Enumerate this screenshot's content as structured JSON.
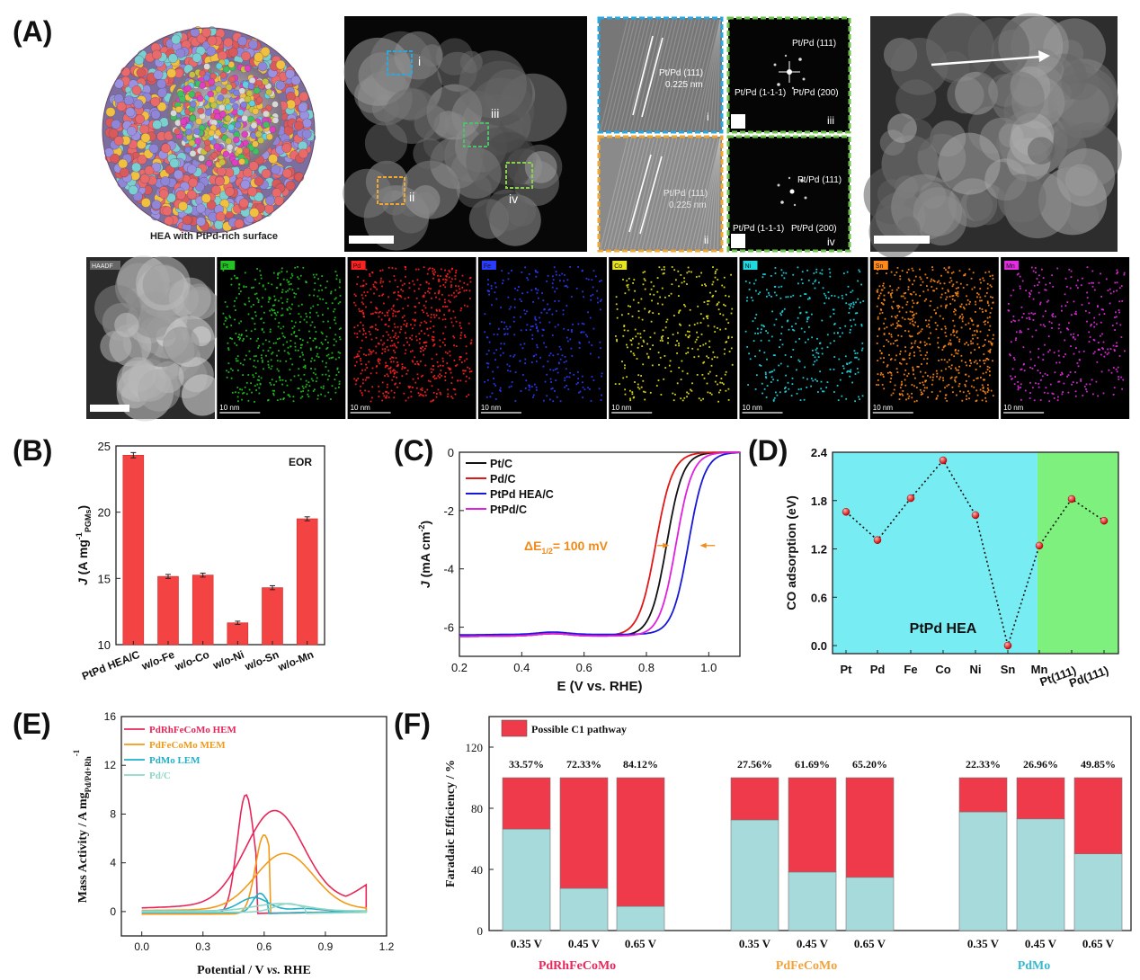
{
  "panel_labels": [
    "(A)",
    "(B)",
    "(C)",
    "(D)",
    "(E)",
    "(F)"
  ],
  "panelA": {
    "sphere_caption": "HEA with PtPd-rich surface",
    "roi_labels": [
      "i",
      "ii",
      "iii",
      "iv"
    ],
    "hrtem": [
      {
        "roman": "i",
        "plane": "Pt/Pd (111)",
        "d": "0.225 nm",
        "frame": "#29a8e0"
      },
      {
        "roman": "ii",
        "plane": "Pt/Pd (111)",
        "d": "0.225 nm",
        "frame": "#f0a830"
      }
    ],
    "fft": [
      {
        "roman": "iii",
        "spots": [
          "Pt/Pd (111)",
          "Pt/Pd (1-1-1)",
          "Pt/Pd (200)"
        ],
        "frame": "#6cc24a"
      },
      {
        "roman": "iv",
        "spots": [
          "Pt/Pd (111)",
          "Pt/Pd (1-1-1)",
          "Pt/Pd (200)"
        ],
        "frame": "#6cc24a"
      }
    ],
    "maps": [
      {
        "tag": "HAADF",
        "color": "#c8c8c8",
        "bg": "#2a2a2a",
        "scale": ""
      },
      {
        "tag": "Pt",
        "color": "#22c322",
        "bg": "#000000",
        "scale": "10 nm"
      },
      {
        "tag": "Pd",
        "color": "#ff2020",
        "bg": "#000000",
        "scale": "10 nm"
      },
      {
        "tag": "Fe",
        "color": "#2a3cff",
        "bg": "#000000",
        "scale": "10 nm"
      },
      {
        "tag": "Co",
        "color": "#e6e61e",
        "bg": "#000000",
        "scale": "10 nm"
      },
      {
        "tag": "Ni",
        "color": "#20d8e0",
        "bg": "#000000",
        "scale": "10 nm"
      },
      {
        "tag": "Sn",
        "color": "#ff8a1a",
        "bg": "#000000",
        "scale": "10 nm"
      },
      {
        "tag": "Mn",
        "color": "#e22de2",
        "bg": "#000000",
        "scale": "10 nm"
      }
    ]
  },
  "chart_data": [
    {
      "id": "B",
      "type": "bar",
      "annotation": "EOR",
      "ylabel": "J (A mg",
      "ylabel_sub": "PGMs",
      "ylabel_sup": "-1",
      "ylabel_end": ")",
      "categories": [
        "PtPd HEA/C",
        "w/o-Fe",
        "w/o-Co",
        "w/o-Ni",
        "w/o-Sn",
        "w/o-Mn"
      ],
      "values": [
        24.3,
        15.15,
        15.25,
        11.65,
        14.3,
        19.5
      ],
      "errors": [
        0.2,
        0.15,
        0.15,
        0.12,
        0.15,
        0.15
      ],
      "ylim": [
        10,
        25
      ],
      "yticks": [
        10,
        15,
        20,
        25
      ],
      "color": "#f44343"
    },
    {
      "id": "C",
      "type": "line",
      "xlabel": "E (V vs. RHE)",
      "ylabel": "J (mA cm",
      "ylabel_sup": "-2",
      "ylabel_end": ")",
      "xlim": [
        0.2,
        1.1
      ],
      "ylim": [
        -7,
        0
      ],
      "xticks": [
        0.2,
        0.4,
        0.6,
        0.8,
        1.0
      ],
      "yticks": [
        0,
        -2,
        -4,
        -6
      ],
      "annotation": "ΔE",
      "annotation_sub": "1/2",
      "annotation_end": "= 100 mV",
      "series": [
        {
          "name": "Pt/C",
          "color": "#111111",
          "plateau": -6.3,
          "half": 0.865,
          "width": 0.026
        },
        {
          "name": "Pd/C",
          "color": "#e01818",
          "plateau": -6.3,
          "half": 0.83,
          "width": 0.027
        },
        {
          "name": "PtPd HEA/C",
          "color": "#1818d8",
          "plateau": -6.25,
          "half": 0.935,
          "width": 0.026
        },
        {
          "name": "PtPd/C",
          "color": "#e020e0",
          "plateau": -6.3,
          "half": 0.895,
          "width": 0.026
        }
      ]
    },
    {
      "id": "D",
      "type": "scatter",
      "ylabel": "CO adsorption (eV)",
      "region_label": "PtPd HEA",
      "categories": [
        "Pt",
        "Pd",
        "Fe",
        "Co",
        "Ni",
        "Sn",
        "Mn",
        "Pt(111)",
        "Pd(111)"
      ],
      "values": [
        1.66,
        1.31,
        1.83,
        2.3,
        1.62,
        0.0,
        1.24,
        1.82,
        1.55
      ],
      "ylim": [
        -0.1,
        2.4
      ],
      "yticks": [
        0.0,
        0.6,
        1.2,
        1.8,
        2.4
      ],
      "tick_labels": [
        "0.0",
        "0.6",
        "1.2",
        "1.8",
        "2.4"
      ],
      "region_colors": [
        "#77ecf2",
        "#7df07d"
      ]
    },
    {
      "id": "E",
      "type": "line",
      "xlabel": "Potential / V vs. RHE",
      "ylabel": "Mass Activity / A mg",
      "ylabel_sub": "Pd/Pd+Rh",
      "ylabel_sup": "-1",
      "xlim": [
        -0.1,
        1.2
      ],
      "ylim": [
        -2,
        16
      ],
      "xticks": [
        0.0,
        0.3,
        0.6,
        0.9,
        1.2
      ],
      "yticks": [
        0,
        4,
        8,
        12,
        16
      ],
      "series": [
        {
          "name": "PdRhFeCoMo HEM",
          "color": "#e8265a"
        },
        {
          "name": "PdFeCoMo MEM",
          "color": "#f29a18"
        },
        {
          "name": "PdMo LEM",
          "color": "#21b0c8"
        },
        {
          "name": "Pd/C",
          "color": "#8fd6c4"
        }
      ]
    },
    {
      "id": "F",
      "type": "bar",
      "ylabel": "Faradaic Efficiency / %",
      "legend": "Possible C1 pathway",
      "ylim": [
        0,
        140
      ],
      "yticks": [
        0,
        40,
        80,
        120
      ],
      "groups": [
        {
          "name": "PdRhFeCoMo",
          "color": "#e8265a",
          "bars": [
            {
              "x": "0.35 V",
              "label": "33.57%",
              "top": 33.57
            },
            {
              "x": "0.45 V",
              "label": "72.33%",
              "top": 72.33
            },
            {
              "x": "0.65 V",
              "label": "84.12%",
              "top": 84.12
            }
          ]
        },
        {
          "name": "PdFeCoMo",
          "color": "#f2a23a",
          "bars": [
            {
              "x": "0.35 V",
              "label": "27.56%",
              "top": 27.56
            },
            {
              "x": "0.45 V",
              "label": "61.69%",
              "top": 61.69
            },
            {
              "x": "0.65 V",
              "label": "65.20%",
              "top": 65.2
            }
          ]
        },
        {
          "name": "PdMo",
          "color": "#37b8d0",
          "bars": [
            {
              "x": "0.35 V",
              "label": "22.33%",
              "top": 22.33
            },
            {
              "x": "0.45 V",
              "label": "26.96%",
              "top": 26.96
            },
            {
              "x": "0.65 V",
              "label": "49.85%",
              "top": 49.85
            }
          ]
        }
      ],
      "colors": {
        "c1": "#ee3a4a",
        "rest": "#a6dadb"
      }
    }
  ]
}
